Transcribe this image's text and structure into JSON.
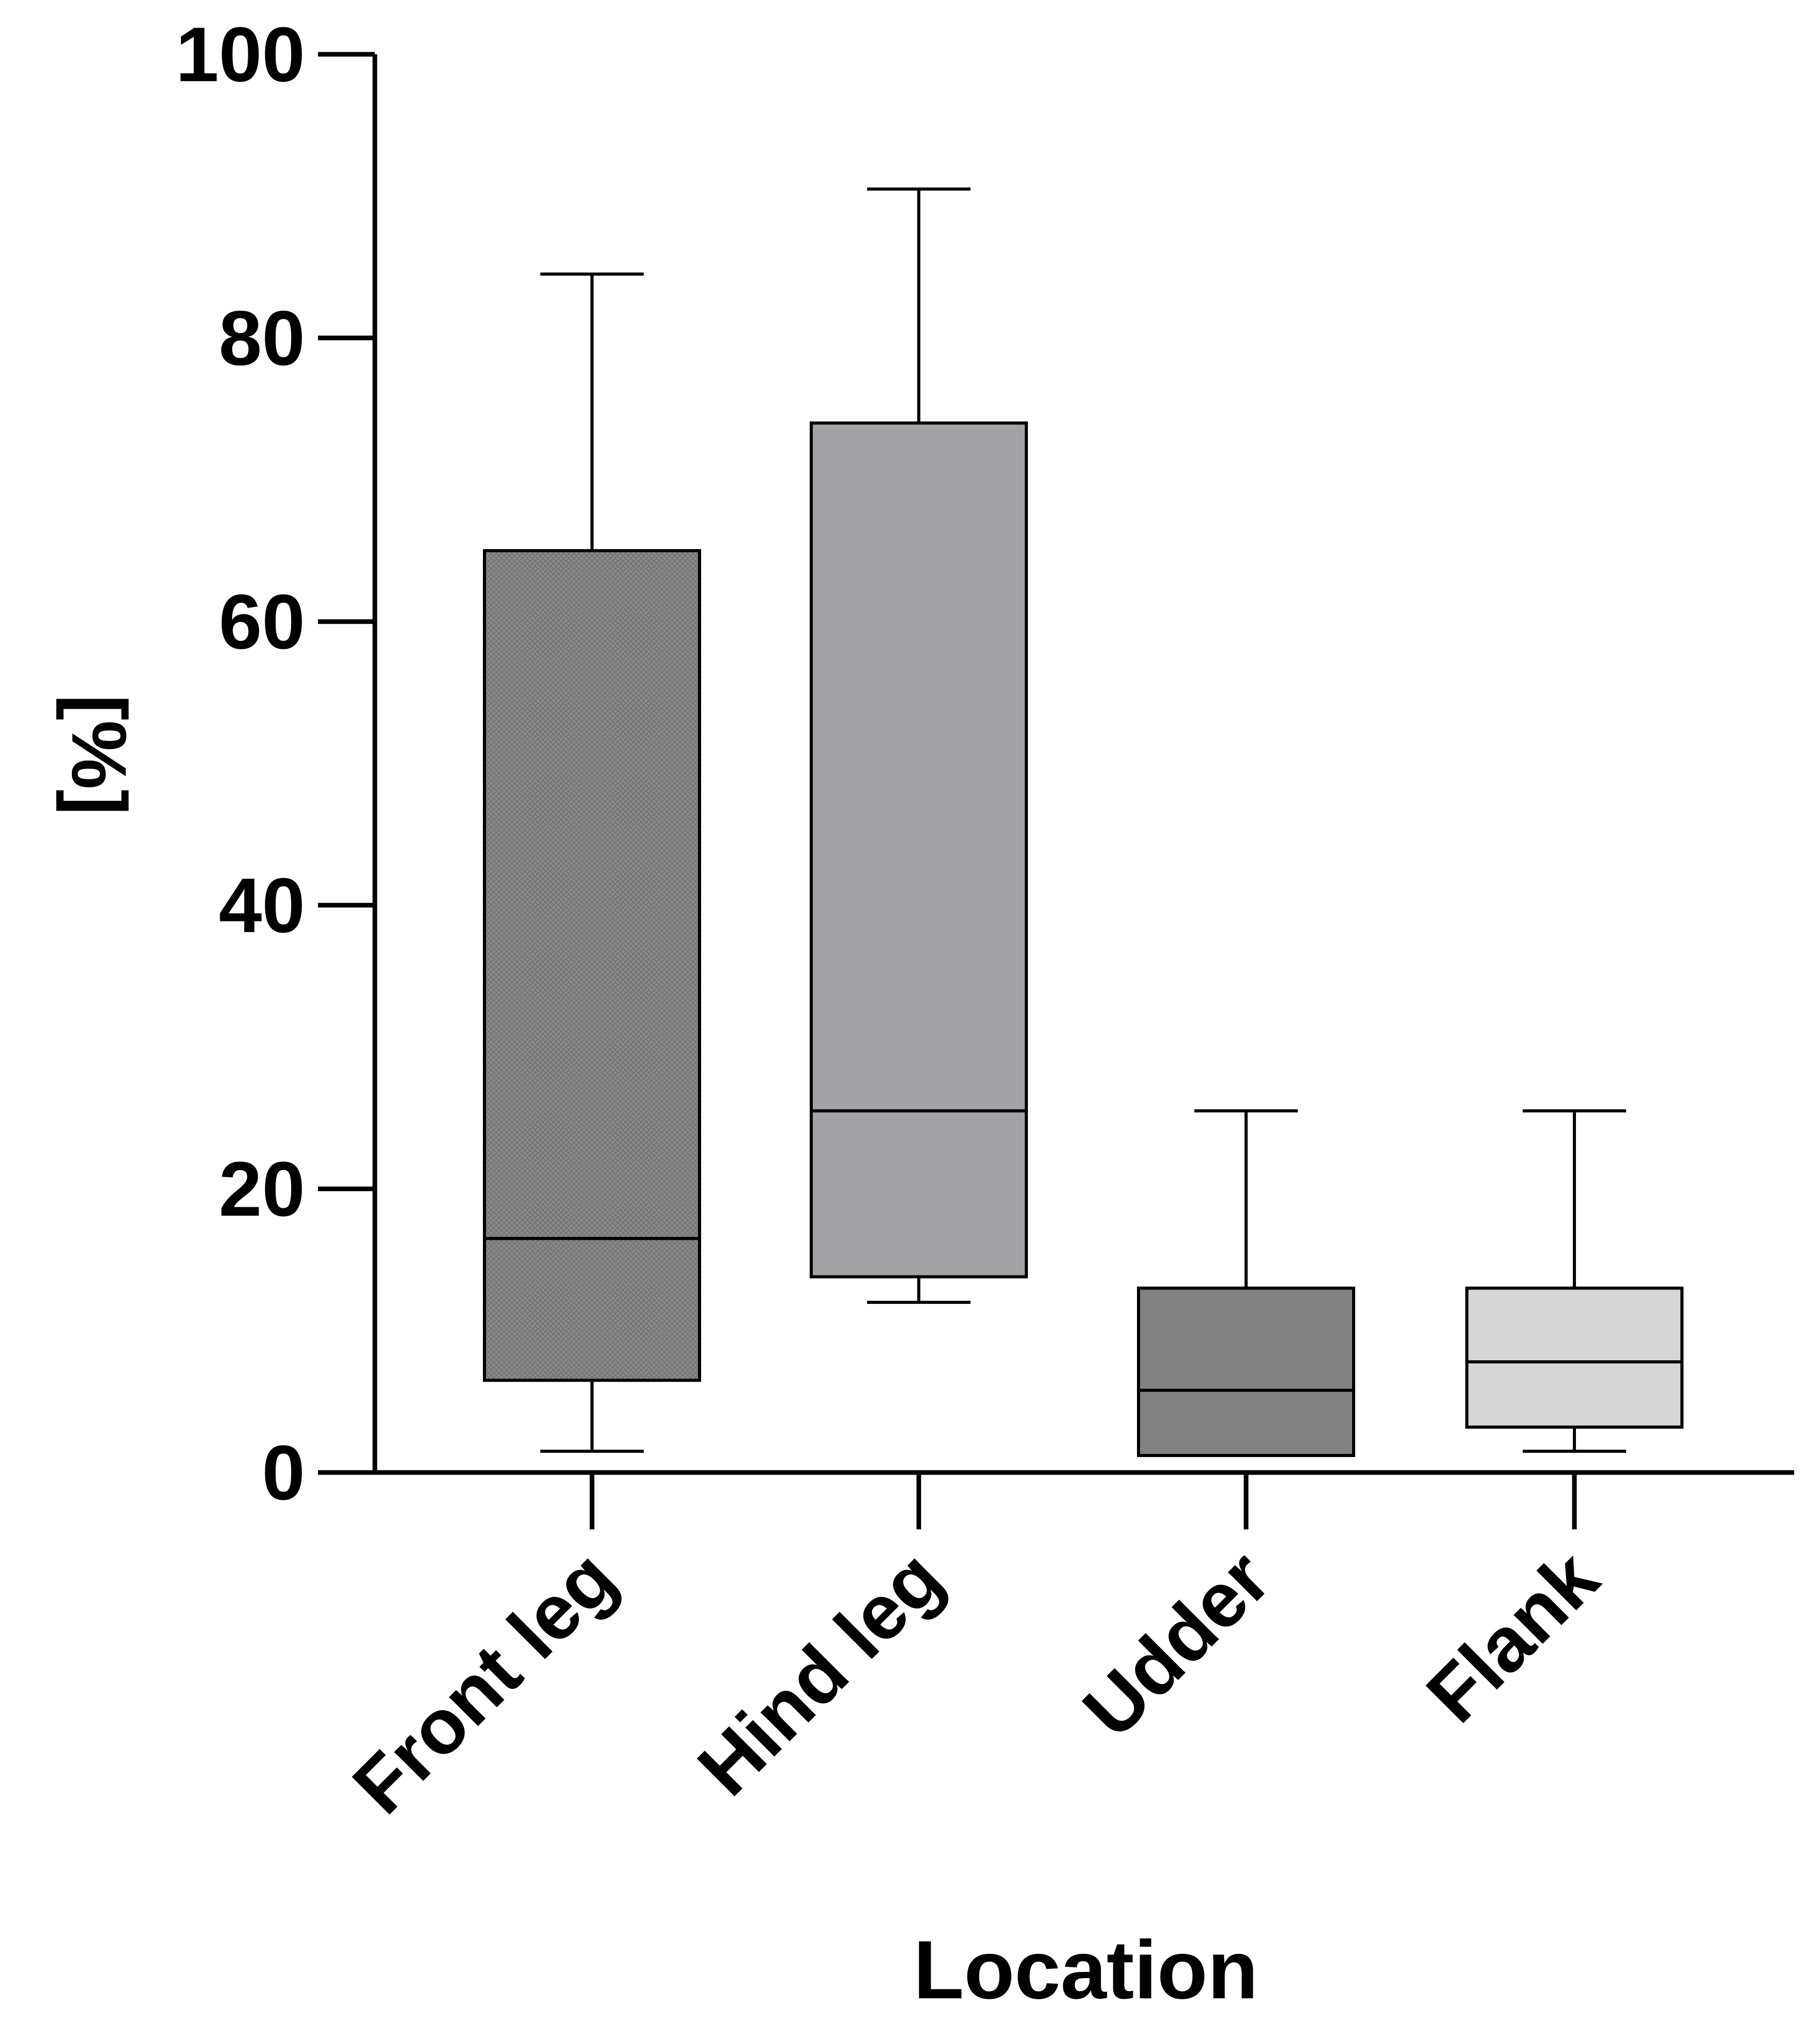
{
  "chart_data": {
    "type": "box",
    "xlabel": "Location",
    "ylabel": "[%]",
    "ylim": [
      0,
      100
    ],
    "yticks": [
      0,
      20,
      40,
      60,
      80,
      100
    ],
    "categories": [
      "Front leg",
      "Hind leg",
      "Udder",
      "Flank"
    ],
    "boxes": [
      {
        "category": "Front leg",
        "min": 1.5,
        "q1": 6.5,
        "median": 16.5,
        "q3": 65.0,
        "max": 84.5,
        "fill": "#8a8a8a",
        "pattern": "crosshatch"
      },
      {
        "category": "Hind leg",
        "min": 12.0,
        "q1": 13.8,
        "median": 25.5,
        "q3": 74.0,
        "max": 90.5,
        "fill": "#a3a3a7",
        "pattern": "none"
      },
      {
        "category": "Udder",
        "min": 1.2,
        "q1": 1.2,
        "median": 5.8,
        "q3": 13.0,
        "max": 25.5,
        "fill": "#828282",
        "pattern": "none"
      },
      {
        "category": "Flank",
        "min": 1.5,
        "q1": 3.2,
        "median": 7.8,
        "q3": 13.0,
        "max": 25.5,
        "fill": "#d6d6d6",
        "pattern": "none"
      }
    ],
    "grid": false,
    "legend": "none"
  }
}
